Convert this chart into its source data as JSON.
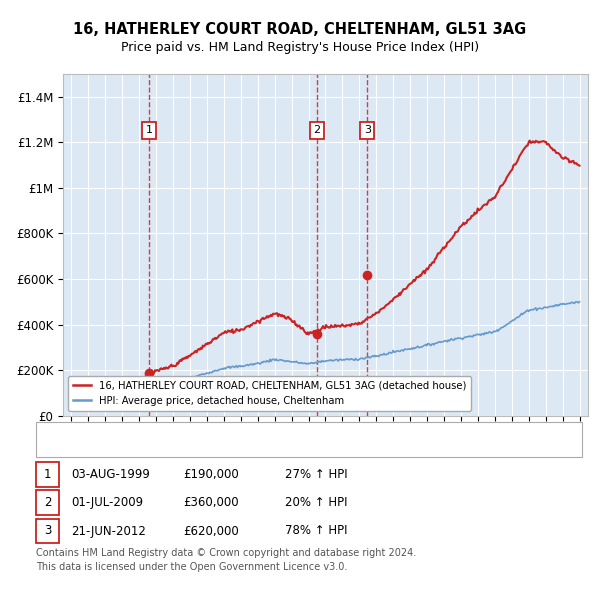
{
  "title": "16, HATHERLEY COURT ROAD, CHELTENHAM, GL51 3AG",
  "subtitle": "Price paid vs. HM Land Registry's House Price Index (HPI)",
  "background_color": "#dce9f5",
  "plot_bg_color": "#dce9f5",
  "ylim": [
    0,
    1500000
  ],
  "yticks": [
    0,
    200000,
    400000,
    600000,
    800000,
    1000000,
    1200000,
    1400000
  ],
  "ytick_labels": [
    "£0",
    "£200K",
    "£400K",
    "£600K",
    "£800K",
    "£1M",
    "£1.2M",
    "£1.4M"
  ],
  "xlim_start": 1994.5,
  "xlim_end": 2025.5,
  "sale_dates": [
    1999.583,
    2009.5,
    2012.47
  ],
  "sale_prices": [
    190000,
    360000,
    620000
  ],
  "sale_labels": [
    "1",
    "2",
    "3"
  ],
  "sale_date_strs": [
    "03-AUG-1999",
    "01-JUL-2009",
    "21-JUN-2012"
  ],
  "sale_price_strs": [
    "£190,000",
    "£360,000",
    "£620,000"
  ],
  "sale_hpi_strs": [
    "27% ↑ HPI",
    "20% ↑ HPI",
    "78% ↑ HPI"
  ],
  "hpi_color": "#6699cc",
  "price_color": "#cc2222",
  "vline_color": "#cc2222",
  "footer_text": "Contains HM Land Registry data © Crown copyright and database right 2024.\nThis data is licensed under the Open Government Licence v3.0.",
  "legend_line1": "16, HATHERLEY COURT ROAD, CHELTENHAM, GL51 3AG (detached house)",
  "legend_line2": "HPI: Average price, detached house, Cheltenham"
}
